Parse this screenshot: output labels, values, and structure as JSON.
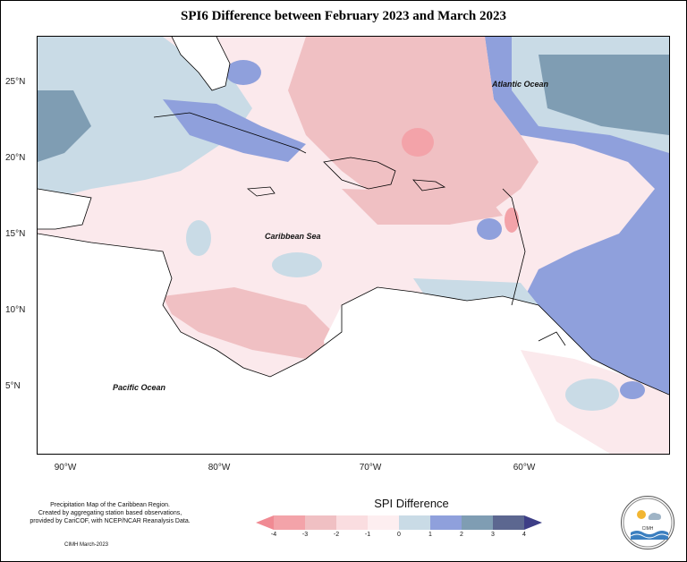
{
  "title": "SPI6 Difference between February 2023 and March 2023",
  "axes": {
    "y_ticks": [
      "25°N",
      "20°N",
      "15°N",
      "10°N",
      "5°N"
    ],
    "x_ticks": [
      "90°W",
      "80°W",
      "70°W",
      "60°W"
    ]
  },
  "labels": {
    "atlantic": "Atlantic Ocean",
    "caribbean": "Caribbean Sea",
    "pacific": "Pacific Ocean"
  },
  "note_lines": [
    "Precipitation Map of the Caribbean Region.",
    "Created by aggregating station based observations,",
    "provided by CariCOF, with NCEP/NCAR Reanalysis Data."
  ],
  "credit": "CIMH March-2023",
  "legend": {
    "title": "SPI Difference",
    "tick_labels": [
      "-4",
      "-3",
      "-2",
      "-1",
      "0",
      "1",
      "2",
      "3",
      "4"
    ],
    "colors": [
      "#f08a93",
      "#f3a3a9",
      "#f0c0c3",
      "#fadde0",
      "#fdeef0",
      "#c9dbe6",
      "#8fa0dc",
      "#7f9db3",
      "#5c6790",
      "#3d3e86"
    ]
  },
  "logo_text": "CIMH"
}
